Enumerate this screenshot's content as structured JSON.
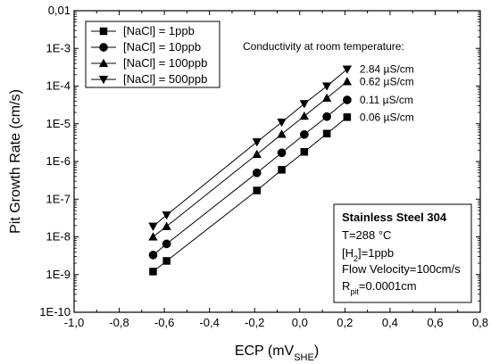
{
  "chart_data": {
    "type": "scatter",
    "xlabel": "ECP (mV",
    "xlabel_sub": "SHE",
    "xlabel_end": ")",
    "ylabel": "Pit Growth Rate (cm/s)",
    "xlim": [
      -1.0,
      0.8
    ],
    "ylim_log10": [
      -10,
      -2
    ],
    "log_y": true,
    "x_ticks": [
      -1.0,
      -0.8,
      -0.6,
      -0.4,
      -0.2,
      0.0,
      0.2,
      0.4,
      0.6,
      0.8
    ],
    "x_tick_labels": [
      "-1,0",
      "-0,8",
      "-0,6",
      "-0,4",
      "-0,2",
      "0,0",
      "0,2",
      "0,4",
      "0,6",
      "0,8"
    ],
    "y_ticks_log10": [
      -10,
      -9,
      -8,
      -7,
      -6,
      -5,
      -4,
      -3,
      -2
    ],
    "y_tick_labels": [
      "1E-10",
      "1E-9",
      "1E-8",
      "1E-7",
      "1E-6",
      "1E-5",
      "1E-4",
      "1E-3",
      "0,01"
    ],
    "x": [
      -0.65,
      -0.59,
      -0.19,
      -0.08,
      0.02,
      0.12,
      0.21
    ],
    "series": [
      {
        "name": "[NaCl] = 1ppb",
        "marker": "square",
        "end_label": "0.06 µS/cm",
        "values": [
          1.2e-09,
          2.3e-09,
          1.7e-07,
          6e-07,
          1.8e-06,
          5.5e-06,
          1.5e-05
        ]
      },
      {
        "name": "[NaCl] = 10ppb",
        "marker": "circle",
        "end_label": "0.11 µS/cm",
        "values": [
          3.3e-09,
          6.5e-09,
          5e-07,
          1.7e-06,
          5.2e-06,
          1.55e-05,
          4.3e-05
        ]
      },
      {
        "name": "[NaCl] = 100ppb",
        "marker": "triangle-up",
        "end_label": "0.62 µS/cm",
        "values": [
          1e-08,
          1.9e-08,
          1.55e-06,
          5.3e-06,
          1.6e-05,
          4.8e-05,
          0.000132
        ]
      },
      {
        "name": "[NaCl] = 500ppb",
        "marker": "triangle-down",
        "end_label": "2.84 µS/cm",
        "values": [
          1.9e-08,
          3.8e-08,
          3.3e-06,
          1.1e-05,
          3.4e-05,
          0.0001,
          0.00028
        ]
      }
    ],
    "legend_placement": "top-left",
    "annotation_title": "Conductivity at room temperature:",
    "info_box": {
      "title": "Stainless Steel 304",
      "line_temp": "T=288 °C",
      "line_h2_pre": "[H",
      "line_h2_sub": "2",
      "line_h2_post": "]=1ppb",
      "line_flow": "Flow Velocity=100cm/s",
      "line_r_pre": "R",
      "line_r_sub": "pit",
      "line_r_post": "=0.0001cm"
    },
    "grid": false
  }
}
